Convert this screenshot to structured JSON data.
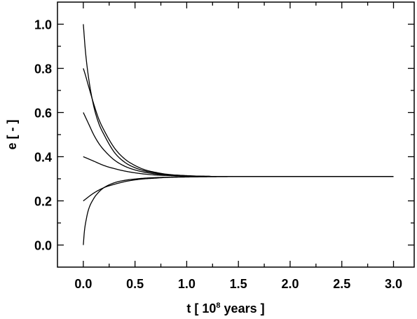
{
  "chart_data": {
    "type": "line",
    "xlabel_parts": {
      "before": "t [ 10",
      "sup": "8",
      "after": " years ]"
    },
    "ylabel": "e [ - ]",
    "xlim": [
      -0.25,
      3.2
    ],
    "ylim": [
      -0.1,
      1.1
    ],
    "x_ticks": [
      0.0,
      0.5,
      1.0,
      1.5,
      2.0,
      2.5,
      3.0
    ],
    "x_tick_labels": [
      "0.0",
      "0.5",
      "1.0",
      "1.5",
      "2.0",
      "2.5",
      "3.0"
    ],
    "y_ticks": [
      0.0,
      0.2,
      0.4,
      0.6,
      0.8,
      1.0
    ],
    "y_tick_labels": [
      "0.0",
      "0.2",
      "0.4",
      "0.6",
      "0.8",
      "1.0"
    ],
    "grid": false,
    "equilibrium_e": 0.31,
    "series": [
      {
        "x": [
          0,
          0.02,
          0.05,
          0.1,
          0.15,
          0.2,
          0.3,
          0.4,
          0.5,
          0.6,
          0.7,
          0.8,
          1.0,
          1.2,
          1.5,
          2.0,
          2.5,
          3.0
        ],
        "values": [
          1.0,
          0.88,
          0.76,
          0.63,
          0.55,
          0.5,
          0.42,
          0.375,
          0.35,
          0.335,
          0.326,
          0.32,
          0.314,
          0.311,
          0.31,
          0.31,
          0.31,
          0.31
        ]
      },
      {
        "x": [
          0,
          0.02,
          0.05,
          0.1,
          0.15,
          0.2,
          0.3,
          0.4,
          0.5,
          0.6,
          0.7,
          0.8,
          1.0,
          1.2,
          1.5,
          2.0,
          2.5,
          3.0
        ],
        "values": [
          0.8,
          0.77,
          0.72,
          0.64,
          0.57,
          0.52,
          0.44,
          0.39,
          0.36,
          0.34,
          0.329,
          0.321,
          0.314,
          0.311,
          0.31,
          0.31,
          0.31,
          0.31
        ]
      },
      {
        "x": [
          0,
          0.05,
          0.1,
          0.15,
          0.2,
          0.3,
          0.4,
          0.5,
          0.6,
          0.7,
          0.8,
          1.0,
          1.2,
          1.5,
          2.0,
          2.5,
          3.0
        ],
        "values": [
          0.6,
          0.55,
          0.5,
          0.46,
          0.43,
          0.385,
          0.357,
          0.34,
          0.329,
          0.322,
          0.317,
          0.313,
          0.311,
          0.31,
          0.31,
          0.31,
          0.31
        ]
      },
      {
        "x": [
          0,
          0.1,
          0.2,
          0.3,
          0.4,
          0.5,
          0.6,
          0.7,
          0.8,
          1.0,
          1.2,
          1.5,
          2.0,
          2.5,
          3.0
        ],
        "values": [
          0.4,
          0.38,
          0.36,
          0.346,
          0.335,
          0.327,
          0.321,
          0.317,
          0.315,
          0.312,
          0.311,
          0.31,
          0.31,
          0.31,
          0.31
        ]
      },
      {
        "x": [
          0,
          0.1,
          0.2,
          0.3,
          0.4,
          0.5,
          0.6,
          0.7,
          0.8,
          1.0,
          1.2,
          1.5,
          2.0,
          2.5,
          3.0
        ],
        "values": [
          0.2,
          0.235,
          0.26,
          0.275,
          0.287,
          0.295,
          0.3,
          0.303,
          0.306,
          0.308,
          0.309,
          0.31,
          0.31,
          0.31,
          0.31
        ]
      },
      {
        "x": [
          0,
          0.01,
          0.03,
          0.05,
          0.1,
          0.15,
          0.2,
          0.3,
          0.4,
          0.5,
          0.6,
          0.8,
          1.0,
          1.2,
          1.5,
          2.0,
          2.5,
          3.0
        ],
        "values": [
          0.0,
          0.06,
          0.12,
          0.16,
          0.21,
          0.24,
          0.26,
          0.282,
          0.293,
          0.299,
          0.303,
          0.307,
          0.309,
          0.31,
          0.31,
          0.31,
          0.31,
          0.31
        ]
      }
    ]
  }
}
